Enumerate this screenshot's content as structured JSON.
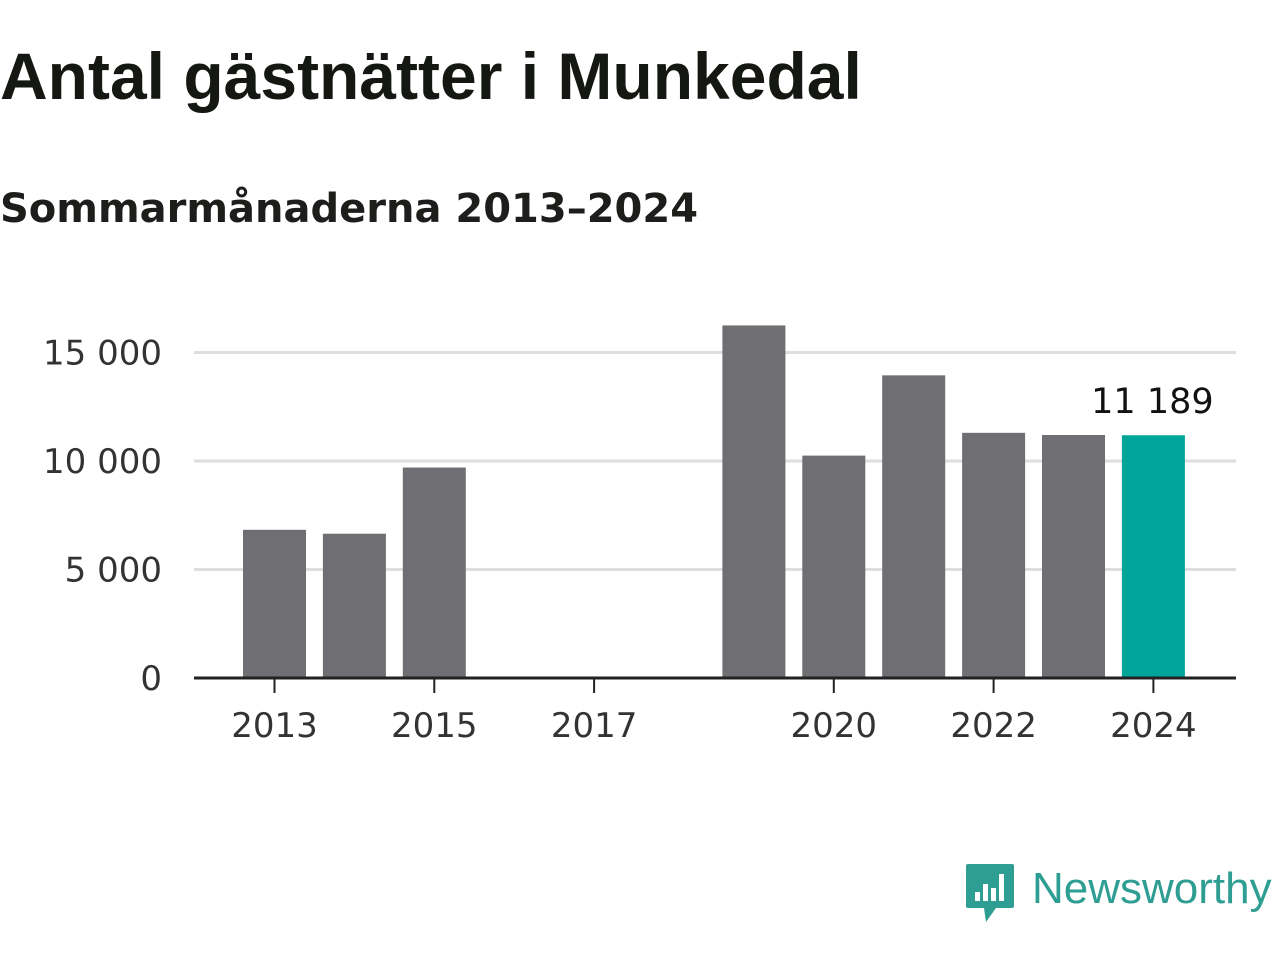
{
  "title": "Antal gästnätter i Munkedal",
  "subtitle": "Sommarmånaderna 2013–2024",
  "brand": {
    "name": "Newsworthy",
    "color": "#2e9e93",
    "icon": "newsworthy-logo-icon"
  },
  "colors": {
    "bar": "#6f6e73",
    "highlight": "#00a59a",
    "grid": "#dedede",
    "axis": "#222222"
  },
  "chart_data": {
    "type": "bar",
    "categories": [
      "2013",
      "2014",
      "2015",
      "2016",
      "2017",
      "2018",
      "2019",
      "2020",
      "2021",
      "2022",
      "2023",
      "2024"
    ],
    "values": [
      6830,
      6650,
      9700,
      null,
      null,
      null,
      16250,
      10250,
      13950,
      11300,
      11200,
      11189
    ],
    "highlight_category": "2024",
    "x_tick_labels": [
      "2013",
      "2015",
      "2017",
      "2020",
      "2022",
      "2024"
    ],
    "y_ticks": [
      0,
      5000,
      10000,
      15000
    ],
    "y_tick_labels": [
      "0",
      "5 000",
      "10 000",
      "15 000"
    ],
    "ylim": [
      0,
      16500
    ],
    "grid": true,
    "data_labels": [
      {
        "category": "2024",
        "text": "11 189"
      }
    ]
  }
}
